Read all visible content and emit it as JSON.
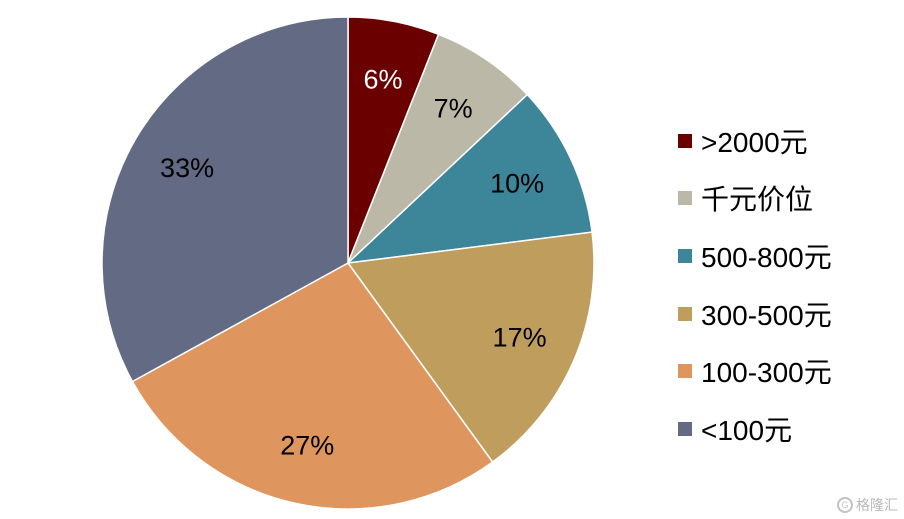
{
  "chart_data": {
    "type": "pie",
    "title": "",
    "start_angle_deg": 0,
    "direction": "clockwise",
    "slices": [
      {
        "label": ">2000元",
        "value": 6,
        "display": "6%",
        "color": "#6b0000",
        "label_color": "#ffffff"
      },
      {
        "label": "千元价位",
        "value": 7,
        "display": "7%",
        "color": "#bcb8a8",
        "label_color": "#000000"
      },
      {
        "label": "500-800元",
        "value": 10,
        "display": "10%",
        "color": "#3d8599",
        "label_color": "#000000"
      },
      {
        "label": "300-500元",
        "value": 17,
        "display": "17%",
        "color": "#bf9e5d",
        "label_color": "#000000"
      },
      {
        "label": "100-300元",
        "value": 27,
        "display": "27%",
        "color": "#de955e",
        "label_color": "#000000"
      },
      {
        "label": "<100元",
        "value": 33,
        "display": "33%",
        "color": "#636a83",
        "label_color": "#000000"
      }
    ],
    "legend_position": "right"
  },
  "watermark": {
    "text": "格隆汇",
    "icon": "g-logo-icon"
  }
}
